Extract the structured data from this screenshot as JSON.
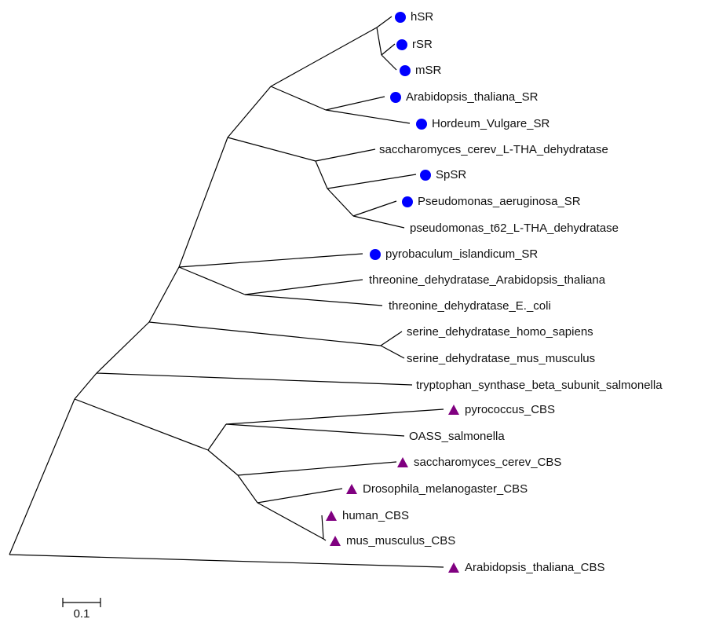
{
  "leaves": [
    {
      "label": "hSR"
    },
    {
      "label": "rSR"
    },
    {
      "label": "mSR"
    },
    {
      "label": "Arabidopsis_thaliana_SR"
    },
    {
      "label": "Hordeum_Vulgare_SR"
    },
    {
      "label": "saccharomyces_cerev_L-THA_dehydratase"
    },
    {
      "label": "SpSR"
    },
    {
      "label": "Pseudomonas_aeruginosa_SR"
    },
    {
      "label": "pseudomonas_t62_L-THA_dehydratase"
    },
    {
      "label": "pyrobaculum_islandicum_SR"
    },
    {
      "label": "threonine_dehydratase_Arabidopsis_thaliana"
    },
    {
      "label": "threonine_dehydratase_E._coli"
    },
    {
      "label": "serine_dehydratase_homo_sapiens"
    },
    {
      "label": "serine_dehydratase_mus_musculus"
    },
    {
      "label": "tryptophan_synthase_beta_subunit_salmonella"
    },
    {
      "label": "pyrococcus_CBS"
    },
    {
      "label": "OASS_salmonella"
    },
    {
      "label": "saccharomyces_cerev_CBS"
    },
    {
      "label": "Drosophila_melanogaster_CBS"
    },
    {
      "label": "human_CBS"
    },
    {
      "label": "mus_musculus_CBS"
    },
    {
      "label": "Arabidopsis_thaliana_CBS"
    }
  ],
  "scale_bar": {
    "label": "0.1"
  }
}
